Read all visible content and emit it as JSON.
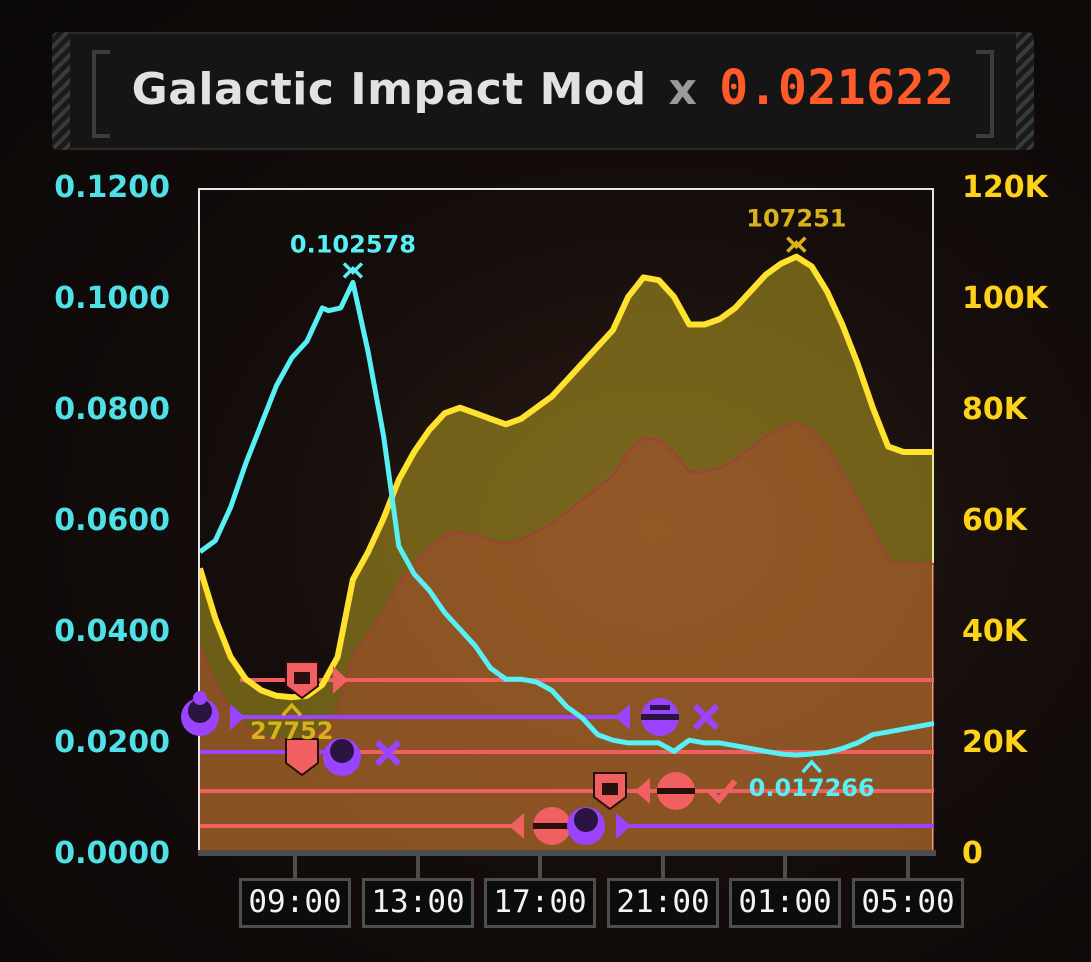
{
  "header": {
    "label": "Galactic Impact Mod",
    "times": "x",
    "value": "0.021622"
  },
  "colors": {
    "impact": "#58f0f4",
    "players": "#ffe22e",
    "header_value": "#ff5a2a",
    "enemy_red": "#f06060",
    "enemy_purple": "#9b44ff"
  },
  "icons": [
    "enemy-faction-1-shield-icon",
    "enemy-faction-2-crescent-icon",
    "enemy-faction-3-disc-icon",
    "check-icon",
    "cross-icon"
  ],
  "chart_data": {
    "type": "line",
    "x_labels": [
      "09:00",
      "13:00",
      "17:00",
      "21:00",
      "01:00",
      "05:00"
    ],
    "y_left": {
      "ticks": [
        "0.1200",
        "0.1000",
        "0.0800",
        "0.0600",
        "0.0400",
        "0.0200",
        "0.0000"
      ],
      "range": [
        0,
        0.12
      ]
    },
    "y_right": {
      "ticks": [
        "120K",
        "100K",
        "80K",
        "60K",
        "40K",
        "20K",
        "0"
      ],
      "range": [
        0,
        120000
      ]
    },
    "series": [
      {
        "axis": "left",
        "x": [
          0,
          0.5,
          1,
          1.5,
          2,
          2.5,
          3,
          3.5,
          4,
          4.2,
          4.6,
          5,
          5.5,
          6,
          6.5,
          7,
          7.5,
          8,
          8.5,
          9,
          9.5,
          10,
          10.5,
          11,
          11.5,
          12,
          12.5,
          13,
          13.5,
          14,
          14.5,
          15,
          15.5,
          16,
          16.5,
          17,
          17.5,
          18,
          18.5,
          19,
          19.5,
          20,
          20.5,
          21,
          21.5,
          22,
          22.5,
          23,
          23.5,
          24
        ],
        "values": [
          0.054,
          0.056,
          0.062,
          0.07,
          0.077,
          0.084,
          0.089,
          0.092,
          0.098,
          0.0975,
          0.098,
          0.1026,
          0.09,
          0.075,
          0.055,
          0.05,
          0.047,
          0.043,
          0.04,
          0.037,
          0.033,
          0.031,
          0.031,
          0.0305,
          0.029,
          0.026,
          0.024,
          0.021,
          0.02,
          0.0195,
          0.0195,
          0.0195,
          0.018,
          0.02,
          0.0195,
          0.0195,
          0.019,
          0.0185,
          0.018,
          0.0175,
          0.0173,
          0.0175,
          0.0178,
          0.0185,
          0.0195,
          0.021,
          0.0215,
          0.022,
          0.0225,
          0.023
        ]
      },
      {
        "axis": "right",
        "x": [
          0,
          0.5,
          1,
          1.5,
          2,
          2.5,
          3,
          3.5,
          4,
          4.5,
          5,
          5.5,
          6,
          6.5,
          7,
          7.5,
          8,
          8.5,
          9,
          9.5,
          10,
          10.5,
          11,
          11.5,
          12,
          12.5,
          13,
          13.5,
          14,
          14.5,
          15,
          15.5,
          16,
          16.5,
          17,
          17.5,
          18,
          18.5,
          19,
          19.5,
          20,
          20.5,
          21,
          21.5,
          22,
          22.5,
          23,
          23.5,
          24
        ],
        "values": [
          51000,
          42000,
          35000,
          31000,
          29000,
          28000,
          27752,
          28000,
          30000,
          35000,
          49000,
          54000,
          60000,
          67000,
          72000,
          76000,
          79000,
          80000,
          79000,
          78000,
          77000,
          78000,
          80000,
          82000,
          85000,
          88000,
          91000,
          94000,
          100000,
          103500,
          103000,
          100000,
          95000,
          95000,
          96000,
          98000,
          101000,
          104000,
          106000,
          107251,
          105500,
          101000,
          95000,
          88000,
          80000,
          73000,
          72000,
          72000,
          72000
        ]
      }
    ],
    "annotations": [
      {
        "series": 0,
        "kind": "max",
        "x": 5,
        "value": "0.102578"
      },
      {
        "series": 0,
        "kind": "min",
        "x": 20,
        "value": "0.017266"
      },
      {
        "series": 1,
        "kind": "max",
        "x": 19.5,
        "value": "107251"
      },
      {
        "series": 1,
        "kind": "min",
        "x": 3,
        "value": "27752"
      }
    ],
    "legend": "none",
    "grid": false
  }
}
